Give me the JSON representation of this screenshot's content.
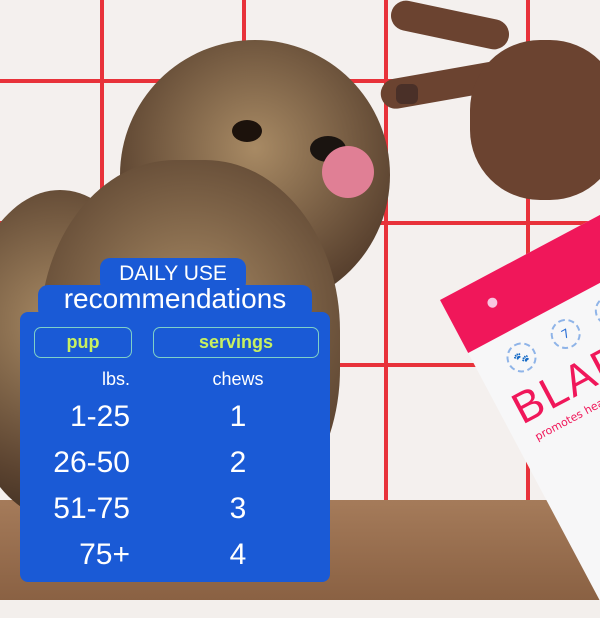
{
  "card": {
    "title_top": "DAILY USE",
    "title_main": "recommendations",
    "headers": [
      "pup",
      "servings"
    ],
    "units": [
      "lbs.",
      "chews"
    ],
    "rows": [
      {
        "weight": "1-25",
        "chews": "1"
      },
      {
        "weight": "26-50",
        "chews": "2"
      },
      {
        "weight": "51-75",
        "chews": "3"
      },
      {
        "weight": "75+",
        "chews": "4"
      }
    ],
    "colors": {
      "panel": "#1a5ad6",
      "header_text": "#c8f060",
      "text": "#ffffff"
    }
  },
  "product": {
    "brand": "BLADD",
    "tagline": "promotes healthy b",
    "color": "#f0175a"
  }
}
